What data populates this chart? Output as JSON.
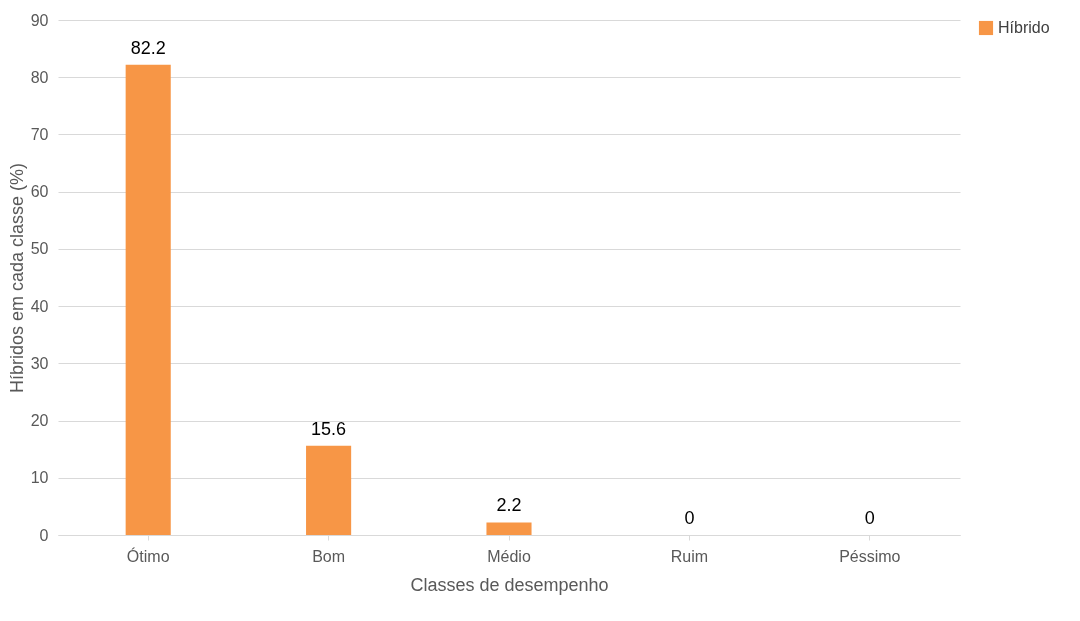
{
  "chart_data": {
    "type": "bar",
    "xlabel": "Classes de desempenho",
    "ylabel": "Híbridos em cada classe (%)",
    "categories": [
      "Ótimo",
      "Bom",
      "Médio",
      "Ruim",
      "Péssimo"
    ],
    "series": [
      {
        "name": "Híbrido",
        "color": "#f79646",
        "values": [
          82.2,
          15.6,
          2.2,
          0,
          0
        ]
      }
    ],
    "ylim": [
      0,
      90
    ],
    "yticks": [
      0,
      10,
      20,
      30,
      40,
      50,
      60,
      70,
      80,
      90
    ],
    "grid": "y",
    "legend": "right",
    "data_labels": true
  }
}
